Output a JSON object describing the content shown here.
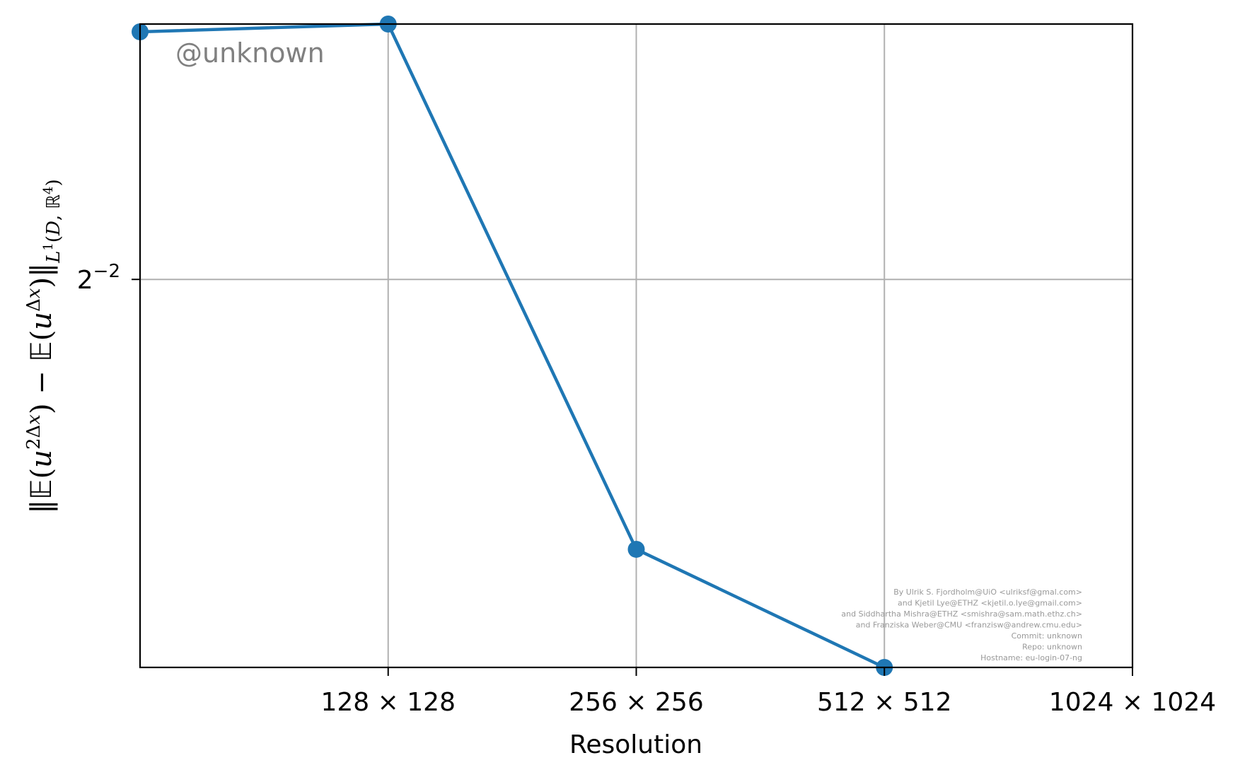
{
  "chart_data": {
    "type": "line",
    "xlabel": "Resolution",
    "ylabel": "‖𝔼(u^{2Δx}) − 𝔼(u^{Δx})‖_{L¹(D,ℝ⁴)}",
    "x_scale": "log2",
    "y_scale": "log2",
    "x_ticks": [
      {
        "value": 128,
        "label": "128 × 128"
      },
      {
        "value": 256,
        "label": "256 × 256"
      },
      {
        "value": 512,
        "label": "512 × 512"
      },
      {
        "value": 1024,
        "label": "1024 × 1024"
      }
    ],
    "y_ticks": [
      {
        "value": 0.25,
        "base": "2",
        "exp": "−2"
      }
    ],
    "xlim": [
      64,
      1024
    ],
    "ylim": [
      0.0955,
      0.471
    ],
    "grid": true,
    "series": [
      {
        "color": "#1f77b4",
        "marker": "circle",
        "x": [
          64,
          128,
          256,
          512
        ],
        "y": [
          0.462,
          0.471,
          0.128,
          0.0955
        ]
      }
    ]
  },
  "watermark": "@unknown",
  "credits": [
    "By Ulrik S. Fjordholm@UiO <ulriksf@gmal.com>",
    "and Kjetil Lye@ETHZ <kjetil.o.lye@gmail.com>",
    "and Siddhartha Mishra@ETHZ <smishra@sam.math.ethz.ch>",
    "and Franziska Weber@CMU <franzisw@andrew.cmu.edu>",
    "Commit: unknown",
    "Repo: unknown",
    "Hostname: eu-login-07-ng"
  ]
}
